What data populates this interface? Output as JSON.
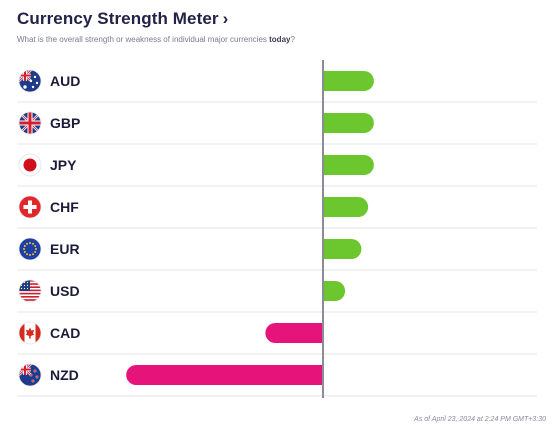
{
  "header": {
    "title": "Currency Strength Meter",
    "chevron": "›",
    "subtitle_pre": "What is the overall strength or weakness of individual major currencies ",
    "subtitle_bold": "today",
    "subtitle_post": "?"
  },
  "footer": {
    "timestamp": "As of April 23, 2024 at 2:24 PM GMT+3:30"
  },
  "colors": {
    "positive": "#6cc72e",
    "negative": "#e5137a",
    "axis": "#8c8c96",
    "divider": "#e6e6ea"
  },
  "chart_data": {
    "type": "bar",
    "orientation": "horizontal",
    "categories": [
      "AUD",
      "GBP",
      "JPY",
      "CHF",
      "EUR",
      "USD",
      "CAD",
      "NZD"
    ],
    "values": [
      5.3,
      5.3,
      5.3,
      4.7,
      4.0,
      2.3,
      -6.0,
      -20.5
    ],
    "flags": [
      "australia-flag",
      "uk-flag",
      "japan-flag",
      "switzerland-flag",
      "eu-flag",
      "us-flag",
      "canada-flag",
      "new-zealand-flag"
    ],
    "xlim": [
      -21,
      24
    ],
    "zero_line": true,
    "grid": false
  }
}
